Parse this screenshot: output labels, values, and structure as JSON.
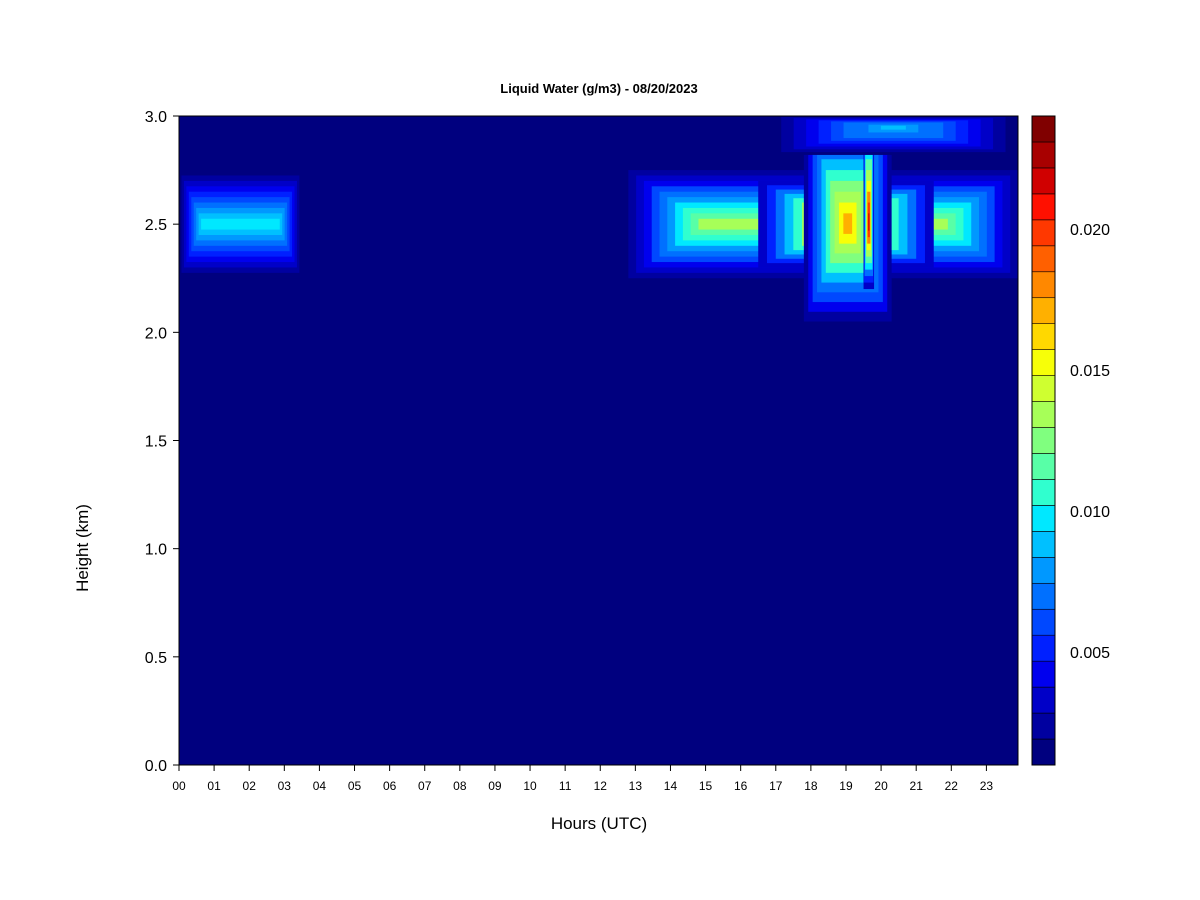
{
  "chart_data": {
    "type": "heatmap",
    "title": "Liquid Water (g/m3) - 08/20/2023",
    "xlabel": "Hours (UTC)",
    "ylabel": "Height (km)",
    "x_ticks": [
      "00",
      "01",
      "02",
      "03",
      "04",
      "05",
      "06",
      "07",
      "08",
      "09",
      "10",
      "11",
      "12",
      "13",
      "14",
      "15",
      "16",
      "17",
      "18",
      "19",
      "20",
      "21",
      "22",
      "23"
    ],
    "y_ticks": [
      "0.0",
      "0.5",
      "1.0",
      "1.5",
      "2.0",
      "2.5",
      "3.0"
    ],
    "xlim": [
      0,
      23.9
    ],
    "ylim": [
      0,
      3.0
    ],
    "colorbar": {
      "min": 0.001,
      "max": 0.024,
      "ticks": [
        "0.005",
        "0.010",
        "0.015",
        "0.020"
      ],
      "tick_values": [
        0.005,
        0.01,
        0.015,
        0.02
      ],
      "colors": [
        "#00007f",
        "#0000a0",
        "#0000c8",
        "#0000ee",
        "#0020ff",
        "#0048ff",
        "#0070ff",
        "#0098ff",
        "#00c0ff",
        "#00e8ff",
        "#30ffcf",
        "#58ffa7",
        "#80ff7f",
        "#a7ff58",
        "#cfff30",
        "#f7ff08",
        "#ffd800",
        "#ffb000",
        "#ff8800",
        "#ff6000",
        "#ff3800",
        "#ff1000",
        "#d00000",
        "#a80000",
        "#800000"
      ]
    },
    "background_value": 0.001,
    "cloud_features": [
      {
        "hours": [
          0.0,
          3.5
        ],
        "height_km": [
          2.25,
          2.75
        ],
        "peak_height_km": 2.5,
        "peak_value": 0.01
      },
      {
        "hours": [
          12.8,
          23.9
        ],
        "height_km": [
          2.25,
          2.75
        ],
        "peak_height_km": 2.5,
        "peak_value": 0.013
      },
      {
        "hours": [
          16.5,
          21.5
        ],
        "height_km": [
          2.3,
          2.7
        ],
        "peak_height_km": 2.5,
        "peak_value": 0.021
      },
      {
        "hours": [
          17.8,
          20.3
        ],
        "height_km": [
          2.05,
          3.0
        ],
        "peak_height_km": 2.5,
        "peak_value": 0.017
      },
      {
        "hours": [
          19.5,
          19.8
        ],
        "height_km": [
          2.2,
          3.0
        ],
        "peak_height_km": 2.5,
        "peak_value": 0.022
      },
      {
        "hours": [
          16.8,
          23.9
        ],
        "height_km": [
          2.82,
          3.0
        ],
        "peak_height_km": 2.95,
        "peak_value": 0.009
      }
    ]
  }
}
